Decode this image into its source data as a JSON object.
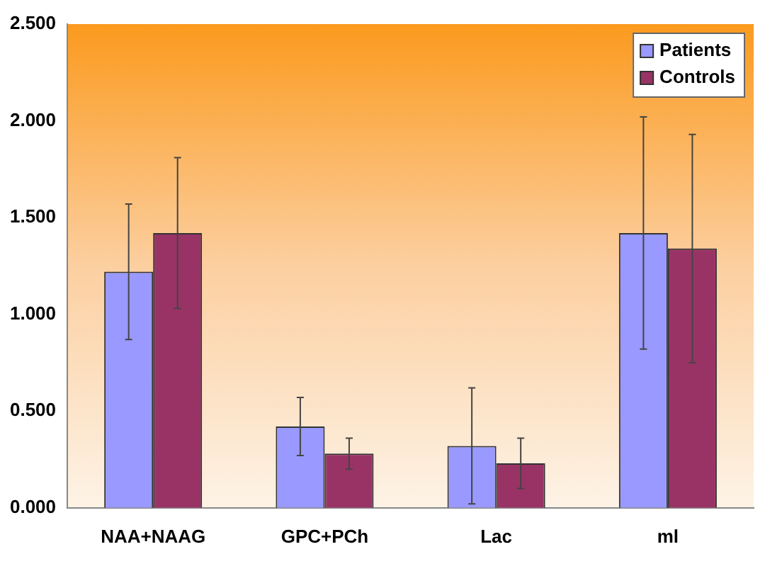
{
  "chart_data": {
    "type": "bar",
    "categories": [
      "NAA+NAAG",
      "GPC+PCh",
      "Lac",
      "ml"
    ],
    "series": [
      {
        "name": "Patients",
        "color": "#9999ff",
        "values": [
          1.22,
          0.42,
          0.32,
          1.42
        ],
        "errors": [
          0.35,
          0.15,
          0.3,
          0.6
        ]
      },
      {
        "name": "Controls",
        "color": "#993366",
        "values": [
          1.42,
          0.28,
          0.23,
          1.34
        ],
        "errors": [
          0.39,
          0.08,
          0.13,
          0.59
        ]
      }
    ],
    "ylim": [
      0,
      2.5
    ],
    "yticks": [
      {
        "value": 0,
        "label": "0.000"
      },
      {
        "value": 0.5,
        "label": "0.500"
      },
      {
        "value": 1,
        "label": "1.000"
      },
      {
        "value": 1.5,
        "label": "1.500"
      },
      {
        "value": 2,
        "label": "2.000"
      },
      {
        "value": 2.5,
        "label": "2.500"
      }
    ],
    "grid": false,
    "legend": "top right"
  }
}
